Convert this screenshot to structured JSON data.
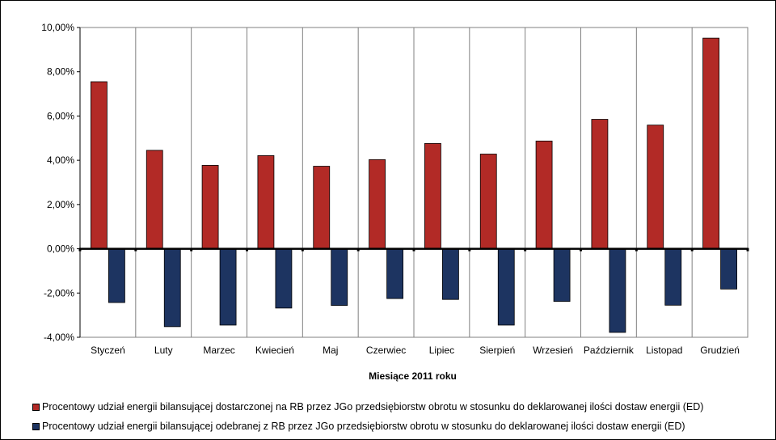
{
  "chart_data": {
    "type": "bar",
    "categories": [
      "Styczeń",
      "Luty",
      "Marzec",
      "Kwiecień",
      "Maj",
      "Czerwiec",
      "Lipiec",
      "Sierpień",
      "Wrzesień",
      "Październik",
      "Listopad",
      "Grudzień"
    ],
    "series": [
      {
        "name": "Procentowy udział energii bilansującej dostarczonej na RB przez JGo przedsiębiorstw obrotu w stosunku do deklarowanej ilości dostaw energii (ED)",
        "values": [
          7.55,
          4.45,
          3.77,
          4.21,
          3.73,
          4.03,
          4.76,
          4.28,
          4.87,
          5.85,
          5.59,
          9.52
        ],
        "color": "#b22a26"
      },
      {
        "name": "Procentowy udział energii bilansującej odebranej z RB przez JGo przedsiębiorstw obrotu w stosunku do deklarowanej ilości dostaw energii (ED)",
        "values": [
          -2.43,
          -3.52,
          -3.45,
          -2.68,
          -2.56,
          -2.25,
          -2.29,
          -3.45,
          -2.38,
          -3.78,
          -2.55,
          -1.82
        ],
        "color": "#1d3461"
      }
    ],
    "xlabel": "Miesiące 2011  roku",
    "ylabel": "",
    "ylim": [
      -4,
      10
    ],
    "yticks": [
      "-4,00%",
      "-2,00%",
      "0,00%",
      "2,00%",
      "4,00%",
      "6,00%",
      "8,00%",
      "10,00%"
    ],
    "grid": true,
    "legend_position": "bottom"
  }
}
